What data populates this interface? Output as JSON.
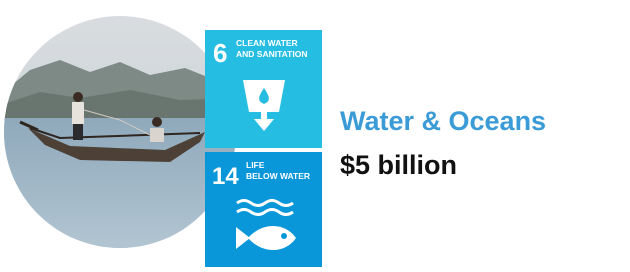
{
  "tiles": [
    {
      "number": "6",
      "label_lines": [
        "CLEAN WATER",
        "AND SANITATION"
      ]
    },
    {
      "number": "14",
      "label_lines": [
        "LIFE",
        "BELOW WATER"
      ]
    }
  ],
  "heading": "Water & Oceans",
  "amount": "$5 billion"
}
